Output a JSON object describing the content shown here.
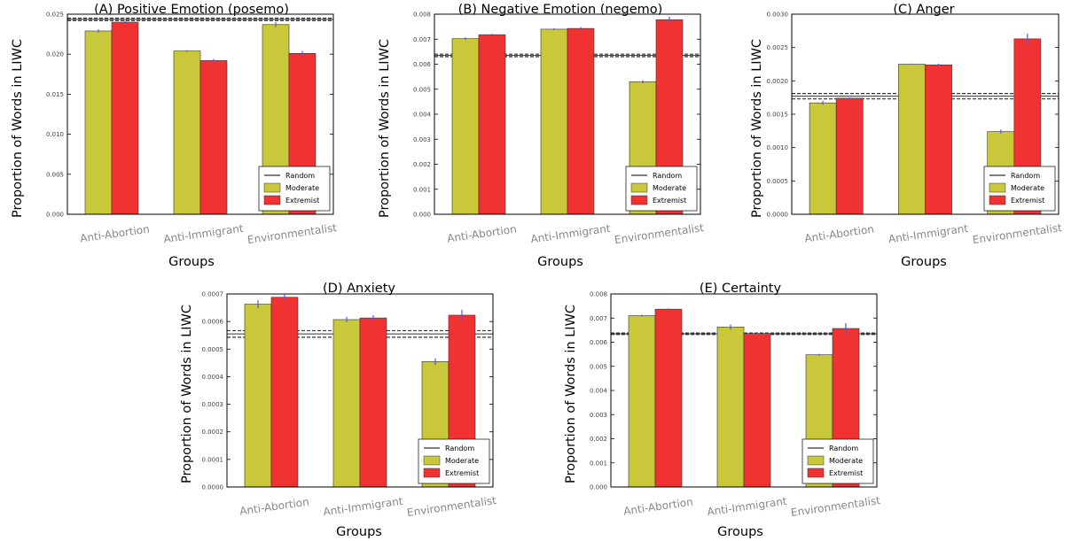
{
  "colors": {
    "moderate": "#c8c83a",
    "extremist": "#f03232",
    "errorbar": "#5555ee",
    "random": "#333333",
    "axis": "#000000"
  },
  "chart_data": [
    {
      "type": "bar",
      "title": "(A) Positive Emotion (posemo)",
      "xlabel": "Groups",
      "ylabel": "Proportion of Words in LIWC",
      "categories": [
        "Anti-Abortion",
        "Anti-Immigrant",
        "Environmentalist"
      ],
      "series": [
        {
          "name": "Moderate",
          "values": [
            0.0229,
            0.0204,
            0.0237
          ],
          "errors": [
            0.0002,
            0.0001,
            0.0003
          ]
        },
        {
          "name": "Extremist",
          "values": [
            0.024,
            0.0192,
            0.0201
          ],
          "errors": [
            0.0002,
            0.0002,
            0.0003
          ]
        }
      ],
      "random": {
        "name": "Random",
        "value": 0.02435,
        "band": [
          0.0242,
          0.0245
        ]
      },
      "ylim": [
        0,
        0.025
      ],
      "yticks": [
        "0.000",
        "0.005",
        "0.010",
        "0.015",
        "0.020",
        "0.025"
      ],
      "ytick_values": [
        0,
        0.005,
        0.01,
        0.015,
        0.02,
        0.025
      ],
      "legend": "bottom-right"
    },
    {
      "type": "bar",
      "title": "(B) Negative Emotion (negemo)",
      "xlabel": "Groups",
      "ylabel": "Proportion of Words in LIWC",
      "categories": [
        "Anti-Abortion",
        "Anti-Immigrant",
        "Environmentalist"
      ],
      "series": [
        {
          "name": "Moderate",
          "values": [
            0.00702,
            0.0074,
            0.0053
          ],
          "errors": [
            5e-05,
            4e-05,
            6e-05
          ]
        },
        {
          "name": "Extremist",
          "values": [
            0.00718,
            0.00743,
            0.00778
          ],
          "errors": [
            4e-05,
            5e-05,
            0.00012
          ]
        }
      ],
      "random": {
        "name": "Random",
        "value": 0.00635,
        "band": [
          0.0063,
          0.0064
        ]
      },
      "ylim": [
        0,
        0.008
      ],
      "yticks": [
        "0.000",
        "0.001",
        "0.002",
        "0.003",
        "0.004",
        "0.005",
        "0.006",
        "0.007",
        "0.008"
      ],
      "ytick_values": [
        0,
        0.001,
        0.002,
        0.003,
        0.004,
        0.005,
        0.006,
        0.007,
        0.008
      ],
      "legend": "bottom-right"
    },
    {
      "type": "bar",
      "title": "(C) Anger",
      "xlabel": "Groups",
      "ylabel": "Proportion of Words in LIWC",
      "categories": [
        "Anti-Abortion",
        "Anti-Immigrant",
        "Environmentalist"
      ],
      "series": [
        {
          "name": "Moderate",
          "values": [
            0.00167,
            0.00225,
            0.00124
          ],
          "errors": [
            3e-05,
            1e-05,
            3e-05
          ]
        },
        {
          "name": "Extremist",
          "values": [
            0.00174,
            0.00224,
            0.00263
          ],
          "errors": [
            1e-05,
            2e-05,
            8e-05
          ]
        }
      ],
      "random": {
        "name": "Random",
        "value": 0.00177,
        "band": [
          0.00173,
          0.00181
        ]
      },
      "ylim": [
        0,
        0.003
      ],
      "yticks": [
        "0.0000",
        "0.0005",
        "0.0010",
        "0.0015",
        "0.0020",
        "0.0025",
        "0.0030"
      ],
      "ytick_values": [
        0,
        0.0005,
        0.001,
        0.0015,
        0.002,
        0.0025,
        0.003
      ],
      "legend": "bottom-right"
    },
    {
      "type": "bar",
      "title": "(D) Anxiety",
      "xlabel": "Groups",
      "ylabel": "Proportion of Words in LIWC",
      "categories": [
        "Anti-Abortion",
        "Anti-Immigrant",
        "Environmentalist"
      ],
      "series": [
        {
          "name": "Moderate",
          "values": [
            0.000663,
            0.000607,
            0.000455
          ],
          "errors": [
            1.5e-05,
            1e-05,
            1.2e-05
          ]
        },
        {
          "name": "Extremist",
          "values": [
            0.000688,
            0.000613,
            0.000623
          ],
          "errors": [
            1e-05,
            1e-05,
            2e-05
          ]
        }
      ],
      "random": {
        "name": "Random",
        "value": 0.000555,
        "band": [
          0.000543,
          0.000567
        ]
      },
      "ylim": [
        0,
        0.0007
      ],
      "yticks": [
        "0.0000",
        "0.0001",
        "0.0002",
        "0.0003",
        "0.0004",
        "0.0005",
        "0.0006",
        "0.0007"
      ],
      "ytick_values": [
        0,
        0.0001,
        0.0002,
        0.0003,
        0.0004,
        0.0005,
        0.0006,
        0.0007
      ],
      "legend": "bottom-right"
    },
    {
      "type": "bar",
      "title": "(E) Certainty",
      "xlabel": "Groups",
      "ylabel": "Proportion of Words in LIWC",
      "categories": [
        "Anti-Abortion",
        "Anti-Immigrant",
        "Environmentalist"
      ],
      "series": [
        {
          "name": "Moderate",
          "values": [
            0.0071,
            0.00663,
            0.00548
          ],
          "errors": [
            4e-05,
            0.0001,
            4e-05
          ]
        },
        {
          "name": "Extremist",
          "values": [
            0.00737,
            0.00636,
            0.00657
          ],
          "errors": [
            3e-05,
            2e-05,
            0.00022
          ]
        }
      ],
      "random": {
        "name": "Random",
        "value": 0.00635,
        "band": [
          0.00632,
          0.00638
        ]
      },
      "ylim": [
        0,
        0.008
      ],
      "yticks": [
        "0.000",
        "0.001",
        "0.002",
        "0.003",
        "0.004",
        "0.005",
        "0.006",
        "0.007",
        "0.008"
      ],
      "ytick_values": [
        0,
        0.001,
        0.002,
        0.003,
        0.004,
        0.005,
        0.006,
        0.007,
        0.008
      ],
      "legend": "bottom-right"
    }
  ]
}
